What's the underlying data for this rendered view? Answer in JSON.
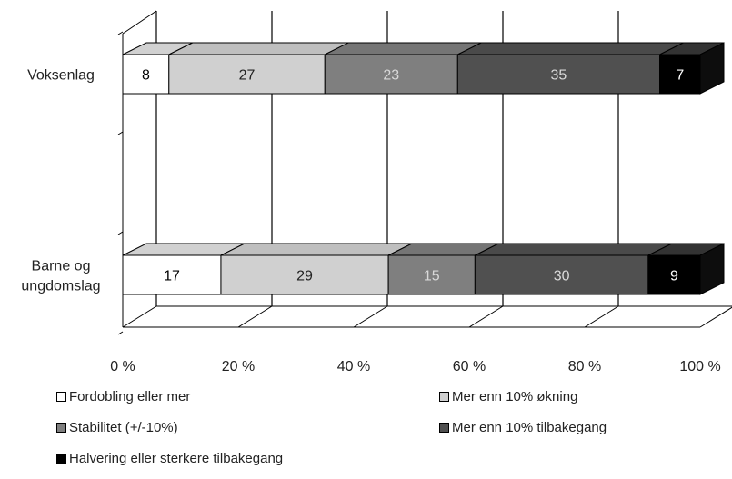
{
  "chart_data": {
    "type": "bar",
    "orientation": "horizontal",
    "stacked": "percent",
    "three_d": true,
    "categories": [
      "Voksenlag",
      "Barne og ungdomslag"
    ],
    "category_display": [
      [
        "Voksenlag"
      ],
      [
        "Barne og",
        "ungdomslag"
      ]
    ],
    "series": [
      {
        "name": "Fordobling eller mer",
        "values": [
          8,
          17
        ],
        "color": "#ffffff",
        "label_color": "#000000"
      },
      {
        "name": "Mer enn 10% økning",
        "values": [
          27,
          29
        ],
        "color": "#d0d0d0",
        "label_color": "#222222"
      },
      {
        "name": "Stabilitet (+/-10%)",
        "values": [
          23,
          15
        ],
        "color": "#7f7f7f",
        "label_color": "#d9d9d9"
      },
      {
        "name": "Mer enn 10% tilbakegang",
        "values": [
          35,
          30
        ],
        "color": "#505050",
        "label_color": "#d9d9d9"
      },
      {
        "name": "Halvering eller sterkere tilbakegang",
        "values": [
          7,
          9
        ],
        "color": "#000000",
        "label_color": "#ffffff"
      }
    ],
    "x_ticks": [
      "0 %",
      "20 %",
      "40 %",
      "60 %",
      "80 %",
      "100 %"
    ],
    "xlim": [
      0,
      100
    ],
    "title": "",
    "xlabel": "",
    "ylabel": "",
    "grid": true,
    "legend_position": "bottom"
  }
}
